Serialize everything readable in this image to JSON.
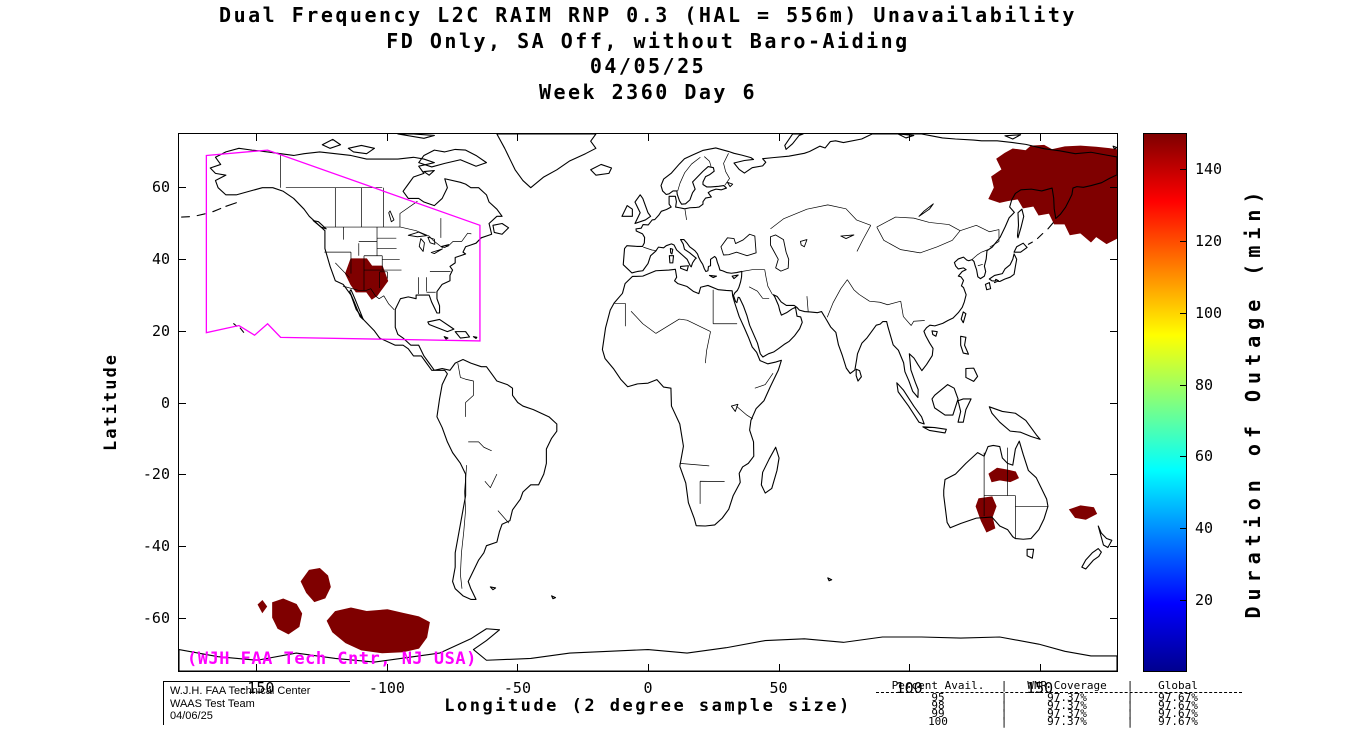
{
  "figure": {
    "background": "#ffffff"
  },
  "title": {
    "line1": "Dual Frequency L2C RAIM RNP 0.3 (HAL = 556m) Unavailability",
    "line2": "FD Only, SA Off, without Baro-Aiding",
    "line3": "04/05/25",
    "line4": "Week 2360 Day 6"
  },
  "axes": {
    "x": {
      "label": "Longitude (2 degree sample size)",
      "ticks": [
        -150,
        -100,
        -50,
        0,
        50,
        100,
        150
      ],
      "range": [
        -180,
        180
      ]
    },
    "y": {
      "label": "Latitude",
      "ticks": [
        60,
        40,
        20,
        0,
        -20,
        -40,
        -60
      ],
      "range": [
        -75,
        75
      ]
    }
  },
  "colorbar": {
    "label": "Duration of Outage (min)",
    "ticks": [
      20,
      40,
      60,
      80,
      100,
      120,
      140
    ],
    "range": [
      0,
      150
    ],
    "colormap": "jet",
    "top_color": "#7f0000",
    "bottom_color": "#00008f"
  },
  "map": {
    "annotation": "(WJH FAA Tech Cntr, NJ USA)",
    "annotation_color": "#ff00ff",
    "coverage_outline_color": "#ff00ff",
    "outage_color": "#7f0000",
    "coastline_color": "#000000"
  },
  "credits": {
    "line1": "W.J.H. FAA Technical Center",
    "line2": "WAAS Test Team",
    "line3": "04/06/25"
  },
  "stats_table": {
    "separator": "|",
    "header": {
      "col1": "Percent Avail.",
      "col2": "WNR Coverage",
      "col3": "Global"
    },
    "rows": [
      {
        "avail": "95",
        "wnr": "97.37%",
        "global": "97.67%"
      },
      {
        "avail": "98",
        "wnr": "97.37%",
        "global": "97.67%"
      },
      {
        "avail": "99",
        "wnr": "97.37%",
        "global": "97.67%"
      },
      {
        "avail": "100",
        "wnr": "97.37%",
        "global": "97.67%"
      }
    ]
  },
  "chart_data": {
    "type": "heatmap",
    "projection": "equirectangular world map",
    "title": "Dual Frequency L2C RAIM RNP 0.3 (HAL = 556m) Unavailability",
    "subtitle": "FD Only, SA Off, without Baro-Aiding",
    "date": "04/05/25",
    "gps_week": "Week 2360 Day 6",
    "xlabel": "Longitude (2 degree sample size)",
    "ylabel": "Latitude",
    "xlim": [
      -180,
      180
    ],
    "ylim": [
      -75,
      75
    ],
    "grid": false,
    "colorbar": {
      "label": "Duration of Outage (min)",
      "range": [
        0,
        150
      ],
      "ticks": [
        20,
        40,
        60,
        80,
        100,
        120,
        140
      ],
      "colormap": "jet"
    },
    "outage_regions": [
      {
        "region": "Northeast Russia / Sea of Okhotsk / Kamchatka",
        "lon_range": [
          131,
          180
        ],
        "lat_range": [
          44,
          71
        ],
        "duration_min": ">=140"
      },
      {
        "region": "US Southwest (Four Corners / New Mexico)",
        "lon_range": [
          -116,
          -100
        ],
        "lat_range": [
          29,
          40
        ],
        "duration_min": ">=140"
      },
      {
        "region": "South Pacific large patch",
        "lon_range": [
          -123,
          -84
        ],
        "lat_range": [
          -70,
          -57
        ],
        "duration_min": ">=140"
      },
      {
        "region": "South Pacific medium patch",
        "lon_range": [
          -133,
          -122
        ],
        "lat_range": [
          -55,
          -46
        ],
        "duration_min": ">=140"
      },
      {
        "region": "South Pacific small patch",
        "lon_range": [
          -145,
          -133
        ],
        "lat_range": [
          -65,
          -55
        ],
        "duration_min": ">=140"
      },
      {
        "region": "South Pacific tiny diamond",
        "lon_range": [
          -150,
          -147
        ],
        "lat_range": [
          -59,
          -56
        ],
        "duration_min": ">=140"
      },
      {
        "region": "Northern Australia",
        "lon_range": [
          131,
          142
        ],
        "lat_range": [
          -22,
          -18
        ],
        "duration_min": ">=140"
      },
      {
        "region": "South-central Australia",
        "lon_range": [
          126,
          134
        ],
        "lat_range": [
          -36,
          -26
        ],
        "duration_min": ">=140"
      },
      {
        "region": "Tasman Sea / west of New Zealand",
        "lon_range": [
          162,
          172
        ],
        "lat_range": [
          -33,
          -29
        ],
        "duration_min": ">=140"
      }
    ],
    "coverage_outline": {
      "label": "WAAS coverage region outline",
      "color": "#ff00ff",
      "vertices_lon_lat": [
        [
          -169.5,
          69
        ],
        [
          -146,
          70.5
        ],
        [
          -64.5,
          49.5
        ],
        [
          -64.5,
          17.2
        ],
        [
          -141,
          18.2
        ],
        [
          -146,
          22
        ],
        [
          -151,
          18.8
        ],
        [
          -157,
          21.5
        ],
        [
          -169.5,
          19.5
        ]
      ]
    },
    "availability_table": {
      "columns": [
        "Percent Avail.",
        "WNR Coverage",
        "Global"
      ],
      "rows": [
        [
          95,
          "97.37%",
          "97.67%"
        ],
        [
          98,
          "97.37%",
          "97.67%"
        ],
        [
          99,
          "97.37%",
          "97.67%"
        ],
        [
          100,
          "97.37%",
          "97.67%"
        ]
      ]
    }
  }
}
